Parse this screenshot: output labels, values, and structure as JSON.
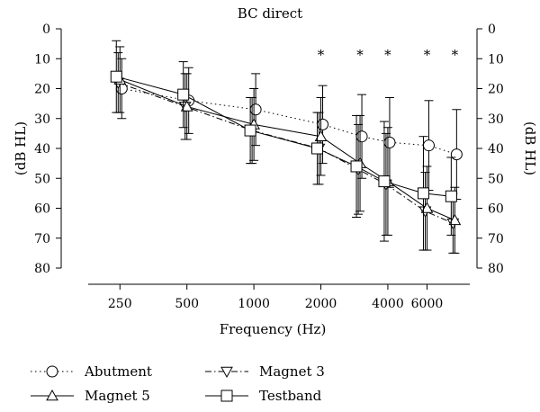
{
  "chart_data": {
    "type": "line",
    "title": "BC direct",
    "xlabel": "Frequency (Hz)",
    "ylabel_left": "(dB HL)",
    "ylabel_right": "(dB HL)",
    "x_scale": "log",
    "x_ticks": [
      250,
      500,
      1000,
      2000,
      4000,
      6000
    ],
    "x": [
      250,
      500,
      1000,
      2000,
      3000,
      4000,
      6000,
      8000
    ],
    "y_inverted": true,
    "ylim": [
      0,
      80
    ],
    "y_ticks": [
      0,
      10,
      20,
      30,
      40,
      50,
      60,
      70,
      80
    ],
    "significance_marker": "*",
    "significance_at": [
      2000,
      3000,
      4000,
      6000,
      8000
    ],
    "series": [
      {
        "name": "Abutment",
        "marker": "circle",
        "line_style": "dotted",
        "values": [
          20,
          24,
          27,
          32,
          36,
          38,
          39,
          42
        ],
        "error": [
          10,
          11,
          12,
          13,
          14,
          15,
          15,
          15
        ]
      },
      {
        "name": "Magnet 3",
        "marker": "triangle-down",
        "line_style": "dash-dot",
        "values": [
          18,
          26,
          34,
          40,
          47,
          52,
          61,
          65
        ],
        "error": [
          10,
          11,
          11,
          12,
          15,
          17,
          13,
          10
        ]
      },
      {
        "name": "Magnet 5",
        "marker": "triangle-up",
        "line_style": "solid",
        "values": [
          17,
          26,
          32,
          36,
          45,
          51,
          60,
          64
        ],
        "error": [
          11,
          11,
          12,
          13,
          16,
          18,
          14,
          11
        ]
      },
      {
        "name": "Testband",
        "marker": "square",
        "line_style": "solid",
        "values": [
          16,
          22,
          34,
          40,
          46,
          51,
          55,
          56
        ],
        "error": [
          12,
          11,
          11,
          12,
          17,
          20,
          19,
          13
        ]
      }
    ],
    "legend": {
      "position": "bottom",
      "order": [
        "Abutment",
        "Magnet 3",
        "Magnet 5",
        "Testband"
      ]
    }
  }
}
